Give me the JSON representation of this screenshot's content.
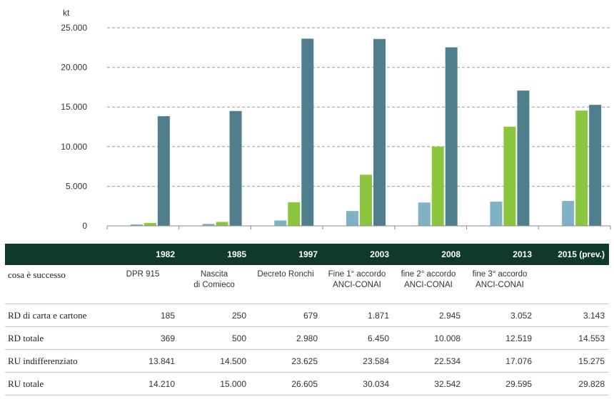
{
  "chart_data": {
    "type": "bar",
    "unit_label": "kt",
    "categories": [
      "1982",
      "1985",
      "1997",
      "2003",
      "2008",
      "2013",
      "2015 (prev.)"
    ],
    "y_ticks": [
      "0",
      "5.000",
      "10.000",
      "15.000",
      "20.000",
      "25.000"
    ],
    "ylim": [
      0,
      25000
    ],
    "grid": true,
    "series": [
      {
        "name": "RD di carta e cartone",
        "color": "#7fb2c4",
        "values": [
          185,
          250,
          679,
          1871,
          2945,
          3052,
          3143
        ]
      },
      {
        "name": "RD totale",
        "color": "#8cc63f",
        "values": [
          369,
          500,
          2980,
          6450,
          10008,
          12519,
          14553
        ]
      },
      {
        "name": "RU indifferenziato",
        "color": "#4f7f8c",
        "values": [
          13841,
          14500,
          23625,
          23584,
          22534,
          17076,
          15275
        ]
      }
    ]
  },
  "table": {
    "events_label": "cosa è successo",
    "events": [
      "DPR 915",
      "Nascita\ndi Comieco",
      "Decreto Ronchi",
      "Fine 1° accordo\nANCI-CONAI",
      "fine 2° accordo\nANCI-CONAI",
      "fine 3° accordo\nANCI-CONAI",
      ""
    ],
    "rows": [
      {
        "label": "RD di carta e cartone",
        "values": [
          "185",
          "250",
          "679",
          "1.871",
          "2.945",
          "3.052",
          "3.143"
        ]
      },
      {
        "label": "RD totale",
        "values": [
          "369",
          "500",
          "2.980",
          "6.450",
          "10.008",
          "12.519",
          "14.553"
        ]
      },
      {
        "label": "RU indifferenziato",
        "values": [
          "13.841",
          "14.500",
          "23.625",
          "23.584",
          "22.534",
          "17.076",
          "15.275"
        ]
      },
      {
        "label": "RU totale",
        "values": [
          "14.210",
          "15.000",
          "26.605",
          "30.034",
          "32.542",
          "29.595",
          "29.828"
        ]
      }
    ]
  }
}
